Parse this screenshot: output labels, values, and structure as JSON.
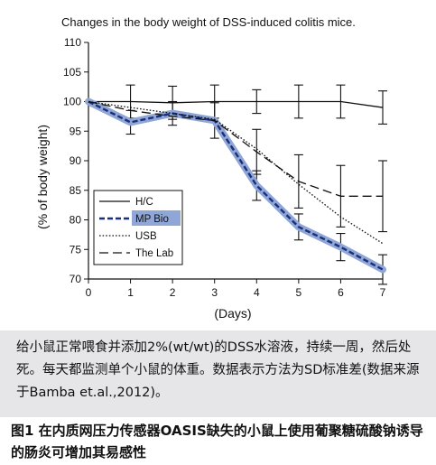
{
  "chart_data": {
    "type": "line",
    "title": "Changes in the body weight of DSS-induced colitis mice.",
    "xlabel": "(Days)",
    "ylabel": "(% of body weight)",
    "x": [
      0,
      1,
      2,
      3,
      4,
      5,
      6,
      7
    ],
    "xlim": [
      0,
      7
    ],
    "ylim": [
      70,
      110
    ],
    "yticks": [
      70,
      75,
      80,
      85,
      90,
      95,
      100,
      105,
      110
    ],
    "grid": false,
    "legend_position": "bottom-left",
    "series": [
      {
        "name": "H/C",
        "style": "solid",
        "color": "#111111",
        "values": [
          100,
          100,
          99.8,
          100,
          100,
          100,
          100,
          99
        ],
        "error": [
          0,
          2.8,
          2.8,
          2.8,
          2,
          2.8,
          2.8,
          2.8
        ]
      },
      {
        "name": "MP Bio",
        "style": "dashed-thick",
        "color": "#1a2f7a",
        "highlight": "#8fa6d6",
        "values": [
          100,
          96.5,
          98,
          96.8,
          85.8,
          78.8,
          75.4,
          71.6
        ],
        "error": [
          0,
          2,
          2,
          3,
          2.5,
          2.2,
          2.3,
          2.5
        ]
      },
      {
        "name": "USB",
        "style": "dotted",
        "color": "#111111",
        "values": [
          100,
          99,
          98,
          97,
          92,
          86,
          80.5,
          76
        ],
        "error": [
          0,
          0,
          0,
          0,
          0,
          0,
          0,
          0
        ]
      },
      {
        "name": "The Lab",
        "style": "long-dash",
        "color": "#111111",
        "values": [
          100,
          98.5,
          97.5,
          96.8,
          91.5,
          86.5,
          84,
          84
        ],
        "error": [
          0,
          0,
          0,
          0,
          3.8,
          4.5,
          5.2,
          6
        ]
      }
    ]
  },
  "caption": {
    "text": "给小鼠正常喂食并添加2%(wt/wt)的DSS水溶液，持续一周，然后处死。每天都监测单个小鼠的体重。数据表示方法为SD标准差(数据来源于Bamba et.al.,2012)。"
  },
  "figure_title": {
    "text": "图1  在内质网压力传感器OASIS缺失的小鼠上使用葡聚糖硫酸钠诱导的肠炎可增加其易感性"
  }
}
